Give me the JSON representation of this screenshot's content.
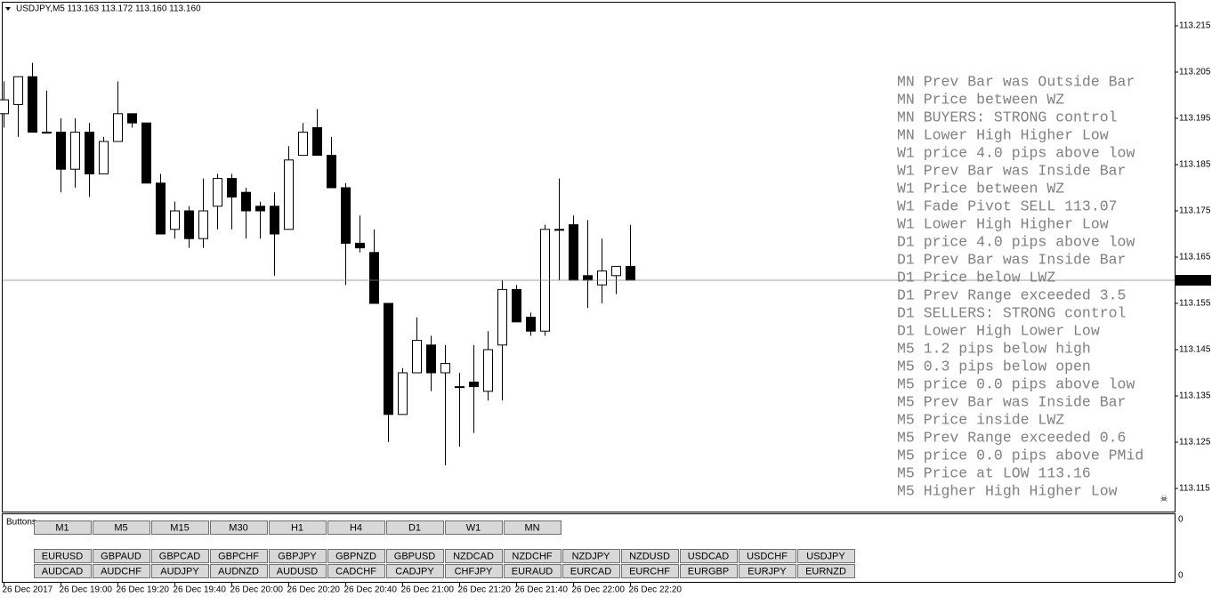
{
  "header": {
    "title": "USDJPY,M5  113.163 113.172 113.160 113.160"
  },
  "chart_data": {
    "type": "candlestick",
    "categories": [
      "26 Dec 2017",
      null,
      null,
      null,
      "26 Dec 19:00",
      null,
      null,
      null,
      "26 Dec 19:20",
      null,
      null,
      null,
      "26 Dec 19:40",
      null,
      null,
      null,
      "26 Dec 20:00",
      null,
      null,
      null,
      "26 Dec 20:20",
      null,
      null,
      null,
      "26 Dec 20:40",
      null,
      null,
      null,
      "26 Dec 21:00",
      null,
      null,
      null,
      "26 Dec 21:20",
      null,
      null,
      null,
      "26 Dec 21:40",
      null,
      null,
      null,
      "26 Dec 22:00",
      null,
      null,
      null,
      "26 Dec 22:20"
    ],
    "open": [
      113.196,
      113.198,
      113.204,
      113.192,
      113.192,
      113.184,
      113.192,
      113.183,
      113.19,
      113.196,
      113.194,
      113.181,
      113.171,
      113.175,
      113.169,
      113.176,
      113.182,
      113.179,
      113.176,
      113.176,
      113.171,
      113.187,
      113.193,
      113.187,
      113.18,
      113.168,
      113.166,
      113.155,
      113.131,
      113.14,
      113.146,
      113.14,
      113.137,
      113.138,
      113.136,
      113.146,
      113.158,
      113.152,
      113.149,
      113.171,
      113.172,
      113.161,
      113.159,
      113.161,
      113.163
    ],
    "high": [
      113.203,
      113.204,
      113.207,
      113.201,
      113.195,
      113.195,
      113.194,
      113.191,
      113.203,
      113.196,
      113.194,
      113.183,
      113.177,
      113.176,
      113.182,
      113.183,
      113.183,
      113.18,
      113.177,
      113.179,
      113.189,
      113.194,
      113.197,
      113.191,
      113.181,
      113.174,
      113.171,
      113.155,
      113.141,
      113.152,
      113.148,
      113.146,
      113.14,
      113.146,
      113.149,
      113.16,
      113.159,
      113.153,
      113.172,
      113.182,
      113.174,
      113.173,
      113.169,
      113.163,
      113.172
    ],
    "low": [
      113.193,
      113.191,
      113.192,
      113.192,
      113.179,
      113.18,
      113.178,
      113.183,
      113.19,
      113.193,
      113.181,
      113.17,
      113.169,
      113.167,
      113.167,
      113.171,
      113.171,
      113.169,
      113.169,
      113.161,
      113.171,
      113.187,
      113.187,
      113.18,
      113.159,
      113.166,
      113.155,
      113.125,
      113.131,
      113.141,
      113.136,
      113.12,
      113.124,
      113.127,
      113.134,
      113.134,
      113.151,
      113.148,
      113.148,
      113.16,
      113.16,
      113.154,
      113.155,
      113.157,
      113.16
    ],
    "close": [
      113.199,
      113.204,
      113.192,
      113.192,
      113.184,
      113.192,
      113.183,
      113.19,
      113.196,
      113.194,
      113.181,
      113.17,
      113.175,
      113.169,
      113.175,
      113.182,
      113.178,
      113.175,
      113.175,
      113.17,
      113.186,
      113.192,
      113.187,
      113.18,
      113.168,
      113.167,
      113.155,
      113.131,
      113.14,
      113.147,
      113.14,
      113.142,
      113.137,
      113.137,
      113.145,
      113.158,
      113.151,
      113.149,
      113.171,
      113.171,
      113.16,
      113.16,
      113.162,
      113.163,
      113.16
    ],
    "up_color": "#ffffff",
    "down_color": "#000000",
    "ylim": [
      113.11,
      113.22
    ],
    "yticks": [
      113.115,
      113.125,
      113.135,
      113.145,
      113.155,
      113.165,
      113.175,
      113.185,
      113.195,
      113.205,
      113.215
    ],
    "current_price": {
      "value": 113.16,
      "label": "113.160"
    }
  },
  "info_lines": [
    "MN Prev Bar was Outside Bar",
    "MN Price between WZ",
    "MN BUYERS: STRONG control",
    "MN Lower High  Higher Low",
    "W1 price 4.0 pips above low",
    "W1 Prev Bar was Inside Bar",
    "W1 Price between WZ",
    "W1 Fade Pivot SELL 113.07",
    "W1 Lower High  Higher Low",
    "D1 price 4.0 pips above low",
    "D1 Prev Bar was Inside Bar",
    "D1 Price below LWZ",
    "D1 Prev Range exceeded 3.5",
    "D1 SELLERS: STRONG control",
    "D1 Lower High  Lower Low",
    "M5 1.2 pips below high",
    "M5 0.3 pips below open",
    "M5 price 0.0 pips above low",
    "M5 Prev Bar was Inside Bar",
    "M5 Price inside LWZ",
    "M5 Prev Range exceeded 0.6",
    "M5 price 0.0 pips above PMid",
    "M5 Price at LOW  113.16",
    "M5 Higher High  Higher Low"
  ],
  "panel": {
    "title": "Buttons",
    "scale_labels": [
      "0",
      "0"
    ],
    "timeframes": [
      "M1",
      "M5",
      "M15",
      "M30",
      "H1",
      "H4",
      "D1",
      "W1",
      "MN"
    ],
    "symbols_row1": [
      "EURUSD",
      "GBPAUD",
      "GBPCAD",
      "GBPCHF",
      "GBPJPY",
      "GBPNZD",
      "GBPUSD",
      "NZDCAD",
      "NZDCHF",
      "NZDJPY",
      "NZDUSD",
      "USDCAD",
      "USDCHF",
      "USDJPY"
    ],
    "symbols_row2": [
      "AUDCAD",
      "AUDCHF",
      "AUDJPY",
      "AUDNZD",
      "AUDUSD",
      "CADCHF",
      "CADJPY",
      "CHFJPY",
      "EURAUD",
      "EURCAD",
      "EURCHF",
      "EURGBP",
      "EURJPY",
      "EURNZD"
    ],
    "active_timeframe": "M5",
    "active_symbol": "USDJPY",
    "active_color": "#0000ff"
  }
}
